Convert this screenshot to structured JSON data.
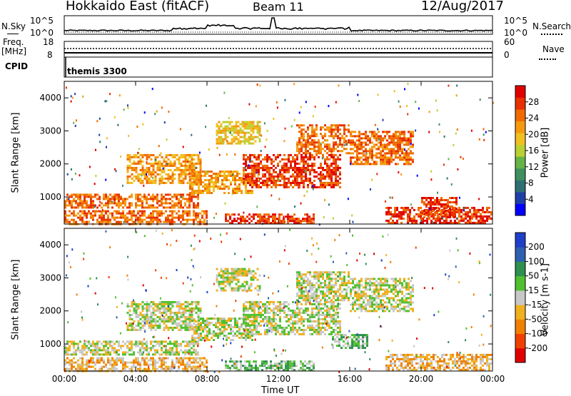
{
  "header": {
    "station": "Hokkaido East (fitACF)",
    "beam": "Beam 11",
    "date": "12/Aug/2017"
  },
  "top_panel": {
    "left_label_nsky": "N.Sky",
    "left_ticks": [
      "10^5",
      "10^0"
    ],
    "right_label_nsearch": "N.Search",
    "right_ticks": [
      "10^5",
      "10^0"
    ]
  },
  "freq_panel": {
    "label_freq": "Freq.",
    "label_unit": "[MHz]",
    "left_ticks": [
      "18",
      "8"
    ],
    "right_label_nave": "Nave",
    "right_ticks": [
      "60",
      "0"
    ]
  },
  "cpid_panel": {
    "label": "CPID",
    "mode": "themis 3300"
  },
  "chart_data": [
    {
      "type": "heatmap",
      "name": "Power",
      "ylabel": "Slant Range [km]",
      "xlabel": "",
      "yticks": [
        1000,
        2000,
        3000,
        4000
      ],
      "xticks": [
        "00:00",
        "04:00",
        "08:00",
        "12:00",
        "16:00",
        "20:00",
        "00:00"
      ],
      "x_range_hours": [
        0,
        24
      ],
      "y_range_km": [
        180,
        4500
      ],
      "colorbar": {
        "label": "Power [dB]",
        "ticks": [
          "4",
          "8",
          "12",
          "16",
          "20",
          "24",
          "28"
        ],
        "colors": [
          "#0000ff",
          "#1f3fa8",
          "#2f6f73",
          "#3f8f5f",
          "#66b347",
          "#bbd033",
          "#f0c020",
          "#f59a10",
          "#f06a00",
          "#e83000",
          "#e00000"
        ]
      },
      "bands": [
        {
          "x": [
            0,
            7.5
          ],
          "y": [
            700,
            1100
          ],
          "level": 8
        },
        {
          "x": [
            0,
            8
          ],
          "y": [
            200,
            600
          ],
          "level": 8
        },
        {
          "x": [
            3.5,
            7.6
          ],
          "y": [
            1400,
            2300
          ],
          "level": 7
        },
        {
          "x": [
            7,
            10.5
          ],
          "y": [
            1100,
            1800
          ],
          "level": 7
        },
        {
          "x": [
            8.5,
            11
          ],
          "y": [
            2600,
            3300
          ],
          "level": 6
        },
        {
          "x": [
            10,
            15.5
          ],
          "y": [
            1300,
            2300
          ],
          "level": 9
        },
        {
          "x": [
            13,
            16
          ],
          "y": [
            2300,
            3200
          ],
          "level": 8
        },
        {
          "x": [
            16,
            19.5
          ],
          "y": [
            2000,
            3000
          ],
          "level": 8
        },
        {
          "x": [
            18,
            24
          ],
          "y": [
            200,
            700
          ],
          "level": 9
        },
        {
          "x": [
            20,
            22
          ],
          "y": [
            400,
            1000
          ],
          "level": 9
        },
        {
          "x": [
            9,
            14
          ],
          "y": [
            200,
            500
          ],
          "level": 9
        }
      ]
    },
    {
      "type": "heatmap",
      "name": "Velocity",
      "ylabel": "Slant Range [km]",
      "xlabel": "Time UT",
      "yticks": [
        1000,
        2000,
        3000,
        4000
      ],
      "xticks": [
        "00:00",
        "04:00",
        "08:00",
        "12:00",
        "16:00",
        "20:00",
        "00:00"
      ],
      "x_range_hours": [
        0,
        24
      ],
      "y_range_km": [
        180,
        4500
      ],
      "colorbar": {
        "label": "Velocity [m s-1]",
        "ticks": [
          "200",
          "100",
          "50",
          "15",
          "-15",
          "-50",
          "-100",
          "-200"
        ],
        "colors": [
          "#1f3fc8",
          "#2f60b0",
          "#2f8f4f",
          "#50c030",
          "#c8c8c8",
          "#f0b020",
          "#f08000",
          "#f04000",
          "#e00000"
        ]
      },
      "bands": [
        {
          "x": [
            0,
            7.5
          ],
          "y": [
            700,
            1100
          ],
          "level": 4
        },
        {
          "x": [
            0,
            8
          ],
          "y": [
            200,
            600
          ],
          "level": 5
        },
        {
          "x": [
            3.5,
            7.6
          ],
          "y": [
            1400,
            2300
          ],
          "level": 4
        },
        {
          "x": [
            7,
            10.5
          ],
          "y": [
            1100,
            1800
          ],
          "level": 4
        },
        {
          "x": [
            8.5,
            11
          ],
          "y": [
            2600,
            3300
          ],
          "level": 4
        },
        {
          "x": [
            10,
            15.5
          ],
          "y": [
            1300,
            2300
          ],
          "level": 4
        },
        {
          "x": [
            13,
            16
          ],
          "y": [
            2300,
            3200
          ],
          "level": 4
        },
        {
          "x": [
            16,
            19.5
          ],
          "y": [
            2000,
            3000
          ],
          "level": 4
        },
        {
          "x": [
            15,
            17
          ],
          "y": [
            900,
            1300
          ],
          "level": 3
        },
        {
          "x": [
            18,
            24
          ],
          "y": [
            200,
            700
          ],
          "level": 5
        },
        {
          "x": [
            9,
            14
          ],
          "y": [
            200,
            500
          ],
          "level": 3
        }
      ]
    }
  ]
}
